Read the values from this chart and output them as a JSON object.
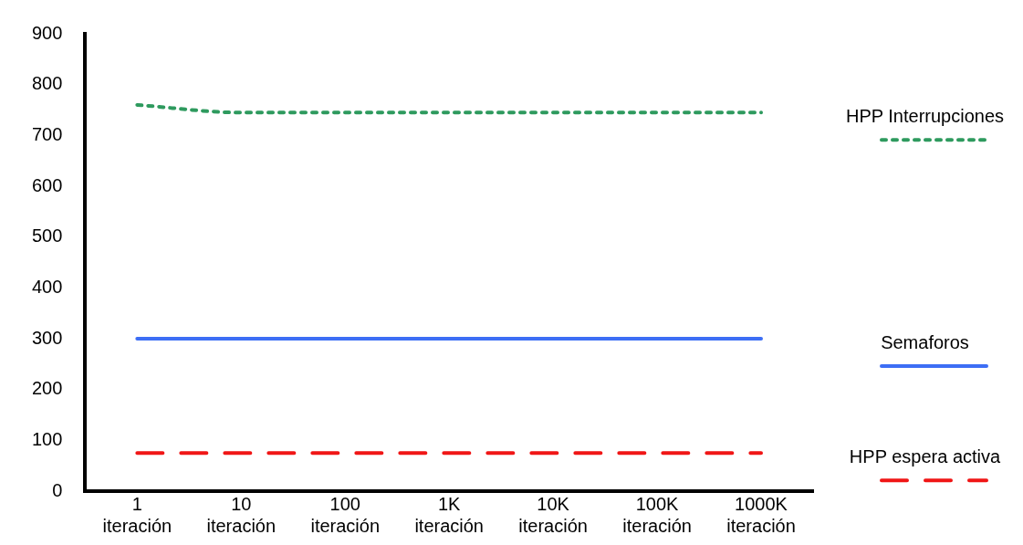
{
  "chart_data": {
    "type": "line",
    "categories": [
      "1 iteración",
      "10 iteración",
      "100 iteración",
      "1K iteración",
      "10K iteración",
      "100K iteración",
      "1000K iteración"
    ],
    "series": [
      {
        "name": "HPP Interrupciones",
        "color": "#2e9a5e",
        "line_style": "dotted",
        "values": [
          760,
          745,
          745,
          745,
          745,
          745,
          745
        ]
      },
      {
        "name": "Semaforos",
        "color": "#3d6ef5",
        "line_style": "solid",
        "values": [
          300,
          300,
          300,
          300,
          300,
          300,
          300
        ]
      },
      {
        "name": "HPP espera activa",
        "color": "#f01616",
        "line_style": "dashed",
        "values": [
          75,
          75,
          75,
          75,
          75,
          75,
          75
        ]
      }
    ],
    "ylim": [
      0,
      900
    ],
    "yticks": [
      0,
      100,
      200,
      300,
      400,
      500,
      600,
      700,
      800,
      900
    ],
    "grid": false,
    "legend": "right",
    "marker": "none"
  }
}
